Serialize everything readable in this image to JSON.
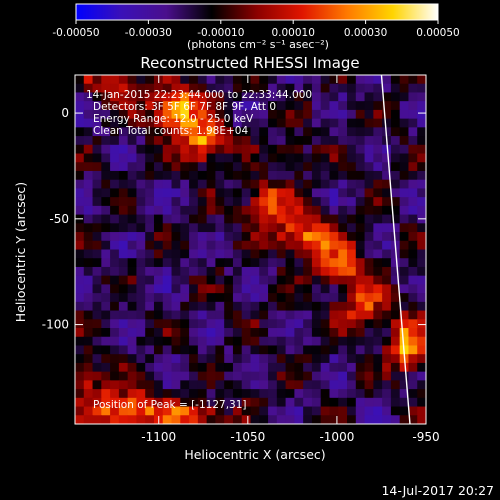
{
  "chart_data": {
    "type": "heatmap",
    "title": "Reconstructed RHESSI Image",
    "xlabel": "Heliocentric X (arcsec)",
    "ylabel": "Heliocentric Y (arcsec)",
    "xlim": [
      -1147,
      -950
    ],
    "ylim": [
      -147,
      18
    ],
    "x_ticks": [
      -1100,
      -1050,
      -1000,
      -950
    ],
    "y_ticks": [
      0,
      -50,
      -100
    ],
    "x_tick_labels": [
      "-1100",
      "-1050",
      "-1000",
      "-950"
    ],
    "y_tick_labels": [
      "0",
      "-50",
      "-100"
    ],
    "colorbar": {
      "range": [
        -0.0005,
        0.0005
      ],
      "ticks": [
        -0.0005,
        -0.0003,
        -0.0001,
        0.0001,
        0.0003,
        0.0005
      ],
      "tick_labels": [
        "-0.00050",
        "-0.00030",
        "-0.00010",
        "0.00010",
        "0.00030",
        "0.00050"
      ],
      "units_label": "(photons cm⁻² s⁻¹ asec⁻²)",
      "colors": [
        "#0000ff",
        "#3a10b8",
        "#4a0f8c",
        "#000000",
        "#8c0000",
        "#e01500",
        "#ff7a00",
        "#ffd400",
        "#ffffff"
      ]
    },
    "annotations": {
      "time_range": "14-Jan-2015 22:23:44.000 to 22:33:44.000",
      "detectors": "Detectors: 3F 5F 6F 7F 8F 9F, Att 0",
      "energy": "Energy Range: 12.0 - 25.0 keV",
      "clean": "Clean     Total counts: 1.98E+04",
      "peak": "Position of Peak = [-1127,31]"
    },
    "peak_position": [
      -1127,
      31
    ],
    "limb_color": "#ffffff",
    "blobs": [
      {
        "x": -1090,
        "y": 2,
        "sx": 16,
        "sy": 10,
        "amp": 0.00052
      },
      {
        "x": -1075,
        "y": -14,
        "sx": 13,
        "sy": 9,
        "amp": 0.00048
      },
      {
        "x": -1125,
        "y": 15,
        "sx": 16,
        "sy": 8,
        "amp": 0.0003
      },
      {
        "x": -1040,
        "y": -42,
        "sx": 14,
        "sy": 9,
        "amp": 0.0004
      },
      {
        "x": -1018,
        "y": -57,
        "sx": 16,
        "sy": 9,
        "amp": 0.00046
      },
      {
        "x": -998,
        "y": -72,
        "sx": 14,
        "sy": 10,
        "amp": 0.00038
      },
      {
        "x": -985,
        "y": -92,
        "sx": 13,
        "sy": 10,
        "amp": 0.0004
      },
      {
        "x": -960,
        "y": -110,
        "sx": 10,
        "sy": 12,
        "amp": 0.00052
      },
      {
        "x": -1025,
        "y": -20,
        "sx": 10,
        "sy": 7,
        "amp": 0.00018
      },
      {
        "x": -1120,
        "y": -140,
        "sx": 20,
        "sy": 9,
        "amp": 0.00046
      },
      {
        "x": -1082,
        "y": -143,
        "sx": 18,
        "sy": 6,
        "amp": 0.0004
      },
      {
        "x": -1140,
        "y": -125,
        "sx": 8,
        "sy": 8,
        "amp": 0.00032
      }
    ],
    "background_level": -0.00018,
    "limb_x_at_ylim": [
      -975,
      -959
    ]
  },
  "footer": {
    "timestamp": "14-Jul-2017 20:27"
  }
}
